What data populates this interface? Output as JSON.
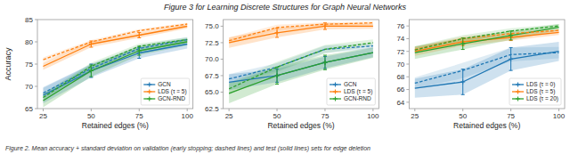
{
  "chart_data": [
    {
      "type": "line",
      "title": "Figure 3 for Learning Discrete Structures for Graph Neural Networks",
      "annotations": [
        "Figure 2. Mean accuracy + standard deviation on validation (early stopping; dashed lines) and test (solid lines) sets for edge deletion"
      ],
      "x": [
        25,
        50,
        75,
        100
      ],
      "xlim": [
        22,
        103
      ],
      "xticks": [
        25,
        50,
        75,
        100
      ],
      "ylim": [
        65,
        85
      ],
      "yticks": [
        65,
        70,
        75,
        80,
        85
      ],
      "xlabel": "Retained edges (%)",
      "ylabel": "Accuracy",
      "legend": "lower right",
      "grid": false,
      "series": [
        {
          "name": "GCN",
          "color": "#1f77b4",
          "line_style": "solid",
          "marker": "plus",
          "values": [
            68.0,
            73.5,
            77.5,
            79.5
          ],
          "error": [
            1.8,
            1.5,
            1.2,
            1.0
          ],
          "error_bars": [
            null,
            1.5,
            1.2,
            null
          ]
        },
        {
          "name": "LDS (τ = 5)",
          "color": "#ff7f0e",
          "line_style": "solid",
          "marker": "plus",
          "values": [
            74.5,
            79.5,
            81.5,
            83.5
          ],
          "error": [
            0.8,
            0.7,
            0.6,
            0.5
          ],
          "error_bars": [
            null,
            0.7,
            0.6,
            null
          ]
        },
        {
          "name": "GCN-RND",
          "color": "#2ca02c",
          "line_style": "solid",
          "marker": "plus",
          "values": [
            66.8,
            73.5,
            78.0,
            80.0
          ],
          "error": [
            1.5,
            1.3,
            1.0,
            0.8
          ],
          "error_bars": [
            null,
            1.3,
            1.0,
            null
          ]
        },
        {
          "color": "#1f77b4",
          "line_style": "dashed",
          "values": [
            68.5,
            74.0,
            78.5,
            80.5
          ],
          "error": [
            1.08,
            0.9,
            0.72,
            0.6
          ]
        },
        {
          "color": "#ff7f0e",
          "line_style": "dashed",
          "values": [
            76.0,
            80.0,
            82.5,
            84.0
          ],
          "error": [
            0.48,
            0.42,
            0.36,
            0.3
          ]
        },
        {
          "color": "#2ca02c",
          "line_style": "dashed",
          "values": [
            67.5,
            74.5,
            79.0,
            80.5
          ],
          "error": [
            0.9,
            0.78,
            0.6,
            0.48
          ]
        }
      ]
    },
    {
      "type": "line",
      "x": [
        25,
        50,
        75,
        100
      ],
      "xlim": [
        22,
        103
      ],
      "xticks": [
        25,
        50,
        75,
        100
      ],
      "ylim": [
        62.5,
        76
      ],
      "yticks": [
        62.5,
        {
          "value": 65,
          "label": "65.0"
        },
        67.5,
        {
          "value": 70,
          "label": "70.0"
        },
        72.5,
        {
          "value": 75,
          "label": "75.0"
        }
      ],
      "xlabel": "Retained edges (%)",
      "legend": "lower right",
      "grid": false,
      "series": [
        {
          "name": "GCN",
          "color": "#1f77b4",
          "line_style": "solid",
          "marker": "plus",
          "values": [
            66.5,
            67.5,
            69.5,
            71.0
          ],
          "error": [
            1.2,
            1.0,
            0.9,
            0.7
          ],
          "error_bars": [
            null,
            1.0,
            0.9,
            null
          ]
        },
        {
          "name": "LDS (τ = 5)",
          "color": "#ff7f0e",
          "line_style": "solid",
          "marker": "plus",
          "values": [
            72.5,
            74.0,
            75.0,
            75.0
          ],
          "error": [
            0.8,
            0.7,
            0.5,
            0.4
          ],
          "error_bars": [
            null,
            0.7,
            0.5,
            null
          ]
        },
        {
          "name": "GCN-RND",
          "color": "#2ca02c",
          "line_style": "solid",
          "marker": "plus",
          "values": [
            64.8,
            67.5,
            69.5,
            71.0
          ],
          "error": [
            1.5,
            1.3,
            1.1,
            0.8
          ],
          "error_bars": [
            null,
            1.3,
            1.1,
            null
          ]
        },
        {
          "color": "#1f77b4",
          "line_style": "dashed",
          "values": [
            67.0,
            68.8,
            71.5,
            72.0
          ],
          "error": [
            0.72,
            0.6,
            0.54,
            0.42
          ]
        },
        {
          "color": "#ff7f0e",
          "line_style": "dashed",
          "values": [
            72.8,
            74.8,
            75.3,
            75.5
          ],
          "error": [
            0.48,
            0.42,
            0.3,
            0.24
          ]
        },
        {
          "color": "#2ca02c",
          "line_style": "dashed",
          "values": [
            65.5,
            68.8,
            71.5,
            72.5
          ],
          "error": [
            0.9,
            0.78,
            0.66,
            0.48
          ]
        }
      ]
    },
    {
      "type": "line",
      "x": [
        25,
        50,
        75,
        100
      ],
      "xlim": [
        22,
        103
      ],
      "xticks": [
        25,
        50,
        75,
        100
      ],
      "ylim": [
        63,
        77
      ],
      "yticks": [
        64,
        66,
        68,
        70,
        72,
        74,
        76
      ],
      "xlabel": "Retained edges (%)",
      "legend": "lower right",
      "grid": false,
      "series": [
        {
          "name": "LDS (τ = 0)",
          "color": "#1f77b4",
          "line_style": "solid",
          "marker": "plus",
          "values": [
            66.2,
            67.2,
            70.8,
            72.0
          ],
          "error": [
            1.5,
            2.0,
            1.8,
            1.5
          ],
          "error_bars": [
            null,
            2.0,
            1.8,
            null
          ]
        },
        {
          "name": "LDS (τ = 5)",
          "color": "#ff7f0e",
          "line_style": "solid",
          "marker": "plus",
          "values": [
            72.0,
            73.5,
            74.2,
            75.0
          ],
          "error": [
            0.7,
            0.6,
            0.5,
            0.4
          ],
          "error_bars": [
            null,
            0.6,
            0.5,
            null
          ]
        },
        {
          "name": "LDS (τ = 20)",
          "color": "#2ca02c",
          "line_style": "solid",
          "marker": "plus",
          "values": [
            71.8,
            73.2,
            74.5,
            75.8
          ],
          "error": [
            1.0,
            0.9,
            0.7,
            0.5
          ],
          "error_bars": [
            null,
            0.9,
            0.7,
            null
          ]
        },
        {
          "color": "#1f77b4",
          "line_style": "dashed",
          "values": [
            67.0,
            69.0,
            71.5,
            71.8
          ],
          "error": [
            0.9,
            1.2,
            1.08,
            0.9
          ]
        },
        {
          "color": "#ff7f0e",
          "line_style": "dashed",
          "values": [
            72.3,
            74.0,
            74.8,
            75.3
          ],
          "error": [
            0.42,
            0.36,
            0.3,
            0.24
          ]
        },
        {
          "color": "#2ca02c",
          "line_style": "dashed",
          "values": [
            72.2,
            74.0,
            75.2,
            76.0
          ],
          "error": [
            0.6,
            0.54,
            0.42,
            0.3
          ]
        }
      ]
    }
  ]
}
